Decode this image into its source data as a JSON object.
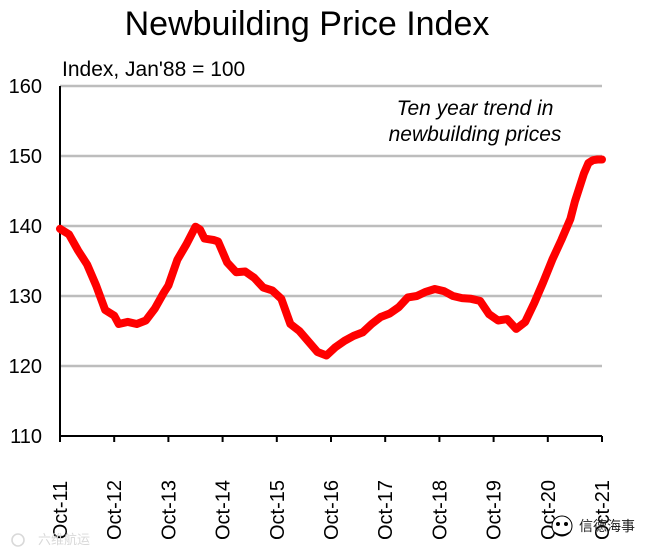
{
  "chart_data": {
    "type": "line",
    "title": "Newbuilding Price Index",
    "subtitle": "Index, Jan'88 = 100",
    "xlabel": "",
    "ylabel": "",
    "ylim": [
      110,
      160
    ],
    "yticks": [
      110,
      120,
      130,
      140,
      150,
      160
    ],
    "xlim": [
      0,
      120
    ],
    "xtick_labels": [
      "Oct-11",
      "Oct-12",
      "Oct-13",
      "Oct-14",
      "Oct-15",
      "Oct-16",
      "Oct-17",
      "Oct-18",
      "Oct-19",
      "Oct-20",
      "Oct-21"
    ],
    "xtick_positions": [
      0,
      12,
      24,
      36,
      48,
      60,
      72,
      84,
      96,
      108,
      120
    ],
    "grid": true,
    "annotations": [
      "Ten year trend in",
      "newbuilding prices"
    ],
    "series": [
      {
        "name": "Newbuilding Price Index",
        "color": "#ff0000",
        "x": [
          0,
          2,
          4,
          6,
          8,
          10,
          12,
          13,
          15,
          17,
          19,
          21,
          23,
          24,
          26,
          28,
          30,
          31,
          32,
          34,
          35,
          37,
          39,
          41,
          43,
          45,
          47,
          49,
          51,
          53,
          55,
          57,
          59,
          61,
          63,
          65,
          67,
          69,
          71,
          73,
          75,
          77,
          79,
          81,
          83,
          85,
          87,
          89,
          91,
          93,
          95,
          97,
          99,
          101,
          103,
          105,
          107,
          109,
          111,
          113,
          114,
          115,
          116,
          117,
          118,
          119,
          120
        ],
        "values": [
          139.6,
          138.8,
          136.5,
          134.5,
          131.5,
          128.0,
          127.2,
          126.0,
          126.3,
          126.0,
          126.5,
          128.2,
          130.5,
          131.5,
          135.2,
          137.4,
          139.9,
          139.5,
          138.2,
          138.0,
          137.8,
          134.8,
          133.4,
          133.5,
          132.6,
          131.2,
          130.8,
          129.6,
          126.0,
          125.0,
          123.5,
          122.0,
          121.5,
          122.7,
          123.6,
          124.3,
          124.8,
          126.0,
          127.0,
          127.5,
          128.4,
          129.8,
          130.0,
          130.6,
          131.0,
          130.7,
          130.0,
          129.7,
          129.6,
          129.3,
          127.4,
          126.5,
          126.7,
          125.3,
          126.3,
          129.0,
          132.0,
          135.2,
          138.0,
          141.0,
          143.5,
          145.5,
          147.5,
          149.0,
          149.4,
          149.5,
          149.5
        ]
      }
    ],
    "watermarks": [
      "六维航运",
      "信德海事"
    ]
  }
}
